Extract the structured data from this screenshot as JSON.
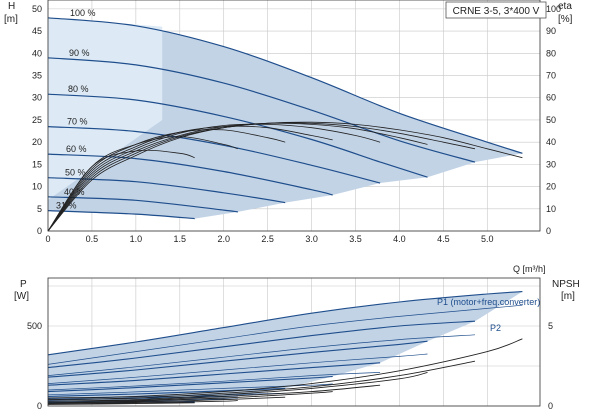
{
  "chart_data": [
    {
      "type": "line",
      "title": "CRNE 3-5, 3*400 V",
      "left_axis": {
        "label": "H",
        "unit": "[m]",
        "ticks": [
          0,
          5,
          10,
          15,
          20,
          25,
          30,
          35,
          40,
          45,
          50
        ],
        "range": [
          0,
          52
        ]
      },
      "right_axis": {
        "label": "eta",
        "unit": "[%]",
        "ticks": [
          0,
          10,
          20,
          30,
          40,
          50,
          60,
          70,
          80,
          90,
          100
        ],
        "range": [
          0,
          104
        ]
      },
      "x_axis": {
        "label": "Q [m³/h]",
        "ticks": [
          "0",
          "0.5",
          "1.0",
          "1.5",
          "2.0",
          "2.5",
          "3.0",
          "3.5",
          "4.0",
          "4.5",
          "5.0"
        ],
        "range": [
          0,
          5.6
        ]
      },
      "grid": true,
      "speed_labels": [
        "100 %",
        "90 %",
        "80 %",
        "70 %",
        "60 %",
        "50 %",
        "40 %",
        "31 %"
      ],
      "series": [
        {
          "name": "100 %",
          "Q": [
            0,
            1,
            2,
            3,
            4,
            5,
            5.4
          ],
          "H": [
            48,
            46.2,
            41.5,
            34.5,
            26.5,
            20,
            17.5
          ]
        },
        {
          "name": "90 %",
          "Q": [
            0,
            1,
            2,
            3,
            4,
            4.86
          ],
          "H": [
            39,
            37.4,
            33.3,
            27.2,
            20.3,
            15.5
          ]
        },
        {
          "name": "80 %",
          "Q": [
            0,
            1,
            2,
            3,
            3.8,
            4.32
          ],
          "H": [
            30.8,
            29.5,
            25.8,
            20.6,
            15.4,
            12.1
          ]
        },
        {
          "name": "70 %",
          "Q": [
            0,
            1,
            2,
            3,
            3.78
          ],
          "H": [
            23.5,
            22.4,
            19.3,
            14.8,
            10.8
          ]
        },
        {
          "name": "60 %",
          "Q": [
            0,
            1,
            2,
            3,
            3.24
          ],
          "H": [
            17.3,
            16.3,
            13.4,
            9.3,
            8.1
          ]
        },
        {
          "name": "50 %",
          "Q": [
            0,
            1,
            2,
            2.7
          ],
          "H": [
            12,
            11.1,
            8.6,
            6.4
          ]
        },
        {
          "name": "40 %",
          "Q": [
            0,
            1,
            2,
            2.16
          ],
          "H": [
            7.7,
            6.9,
            4.7,
            4.3
          ]
        },
        {
          "name": "31 %",
          "Q": [
            0,
            1,
            1.67
          ],
          "H": [
            4.6,
            3.8,
            2.8
          ]
        }
      ],
      "eta_curves": [
        {
          "Q": [
            0,
            0.5,
            1,
            1.5,
            2,
            2.5,
            3,
            3.5,
            4,
            4.5,
            5,
            5.4
          ],
          "eta": [
            0,
            23,
            34,
            42,
            46.5,
            48.5,
            49,
            48,
            45.5,
            42,
            37,
            33
          ]
        },
        {
          "Q": [
            0,
            0.5,
            1,
            1.5,
            2,
            2.5,
            3,
            3.5,
            4,
            4.5,
            4.86
          ],
          "eta": [
            0,
            24,
            35,
            42.5,
            46.5,
            48.5,
            48.5,
            47,
            44,
            40,
            37
          ]
        },
        {
          "Q": [
            0,
            0.5,
            1,
            1.5,
            2,
            2.5,
            3,
            3.5,
            4,
            4.32
          ],
          "eta": [
            0,
            25,
            36,
            43,
            47,
            48.5,
            48,
            46,
            42,
            39
          ]
        },
        {
          "Q": [
            0,
            0.5,
            1,
            1.5,
            2,
            2.5,
            3,
            3.5,
            3.78
          ],
          "eta": [
            0,
            26,
            37,
            44,
            47.5,
            48,
            46.5,
            43,
            40
          ]
        },
        {
          "Q": [
            0,
            0.5,
            1,
            1.5,
            2,
            2.5,
            3,
            3.24
          ],
          "eta": [
            0,
            27,
            38,
            44.5,
            47,
            46.5,
            43,
            41
          ]
        },
        {
          "Q": [
            0,
            0.5,
            1,
            1.5,
            2,
            2.5,
            2.7
          ],
          "eta": [
            0,
            28,
            39,
            44.5,
            45.5,
            42,
            40
          ]
        },
        {
          "Q": [
            0,
            0.5,
            1,
            1.5,
            2,
            2.16
          ],
          "eta": [
            0,
            29,
            39,
            42.5,
            39,
            37
          ]
        },
        {
          "Q": [
            0,
            0.5,
            1,
            1.5,
            1.67
          ],
          "eta": [
            0,
            29,
            36,
            35,
            33
          ]
        }
      ],
      "colors": {
        "curve": "#1f4e8c",
        "region_light": "#ddeaf6",
        "region_dark": "#c2d3e6",
        "eta": "#222222",
        "grid": "#c8c8c8"
      }
    },
    {
      "type": "line",
      "left_axis": {
        "label": "P",
        "unit": "[W]",
        "ticks": [
          0,
          500
        ],
        "range": [
          0,
          800
        ]
      },
      "right_axis": {
        "label": "NPSH",
        "unit": "[m]",
        "ticks": [
          0,
          5
        ],
        "range": [
          0,
          8
        ]
      },
      "series_labels": {
        "p1": "P1 (motor+freq.converter)",
        "p2": "P2"
      },
      "p1_curves": [
        {
          "Q": [
            0,
            1,
            2,
            3,
            4,
            5,
            5.4
          ],
          "P": [
            320,
            400,
            490,
            580,
            650,
            700,
            715
          ]
        },
        {
          "Q": [
            0,
            1,
            2,
            3,
            4,
            4.86
          ],
          "P": [
            240,
            300,
            370,
            440,
            500,
            530
          ]
        },
        {
          "Q": [
            0,
            1,
            2,
            3,
            4,
            4.32
          ],
          "P": [
            180,
            225,
            280,
            335,
            385,
            405
          ]
        },
        {
          "Q": [
            0,
            1,
            2,
            3,
            3.78
          ],
          "P": [
            130,
            160,
            200,
            240,
            270
          ]
        },
        {
          "Q": [
            0,
            1,
            2,
            3,
            3.24
          ],
          "P": [
            90,
            115,
            145,
            175,
            185
          ]
        },
        {
          "Q": [
            0,
            1,
            2,
            2.7
          ],
          "P": [
            60,
            75,
            95,
            110
          ]
        },
        {
          "Q": [
            0,
            1,
            2,
            2.16
          ],
          "P": [
            38,
            48,
            60,
            63
          ]
        },
        {
          "Q": [
            0,
            1,
            1.67
          ],
          "P": [
            22,
            28,
            32
          ]
        }
      ],
      "p2_curves": [
        {
          "Q": [
            0,
            1,
            2,
            3,
            4,
            5,
            5.4
          ],
          "P": [
            260,
            340,
            420,
            500,
            560,
            610,
            630
          ]
        },
        {
          "Q": [
            0,
            1,
            2,
            3,
            4,
            4.86
          ],
          "P": [
            190,
            245,
            305,
            365,
            415,
            445
          ]
        },
        {
          "Q": [
            0,
            1,
            2,
            3,
            4,
            4.32
          ],
          "P": [
            140,
            180,
            225,
            270,
            310,
            325
          ]
        },
        {
          "Q": [
            0,
            1,
            2,
            3,
            3.78
          ],
          "P": [
            100,
            125,
            155,
            190,
            210
          ]
        },
        {
          "Q": [
            0,
            1,
            2,
            3,
            3.24
          ],
          "P": [
            70,
            88,
            110,
            130,
            138
          ]
        },
        {
          "Q": [
            0,
            1,
            2,
            2.7
          ],
          "P": [
            45,
            57,
            70,
            80
          ]
        },
        {
          "Q": [
            0,
            1,
            2,
            2.16
          ],
          "P": [
            28,
            35,
            44,
            46
          ]
        },
        {
          "Q": [
            0,
            1,
            1.67
          ],
          "P": [
            16,
            20,
            23
          ]
        }
      ],
      "npsh_curves": [
        {
          "Q": [
            0,
            1,
            2,
            3,
            4,
            5,
            5.4
          ],
          "NPSH": [
            0.5,
            0.6,
            0.9,
            1.4,
            2.2,
            3.4,
            4.2
          ]
        },
        {
          "Q": [
            0,
            1,
            2,
            3,
            4,
            4.86
          ],
          "NPSH": [
            0.4,
            0.5,
            0.8,
            1.2,
            1.9,
            2.8
          ]
        },
        {
          "Q": [
            0,
            1,
            2,
            3,
            4,
            4.32
          ],
          "NPSH": [
            0.3,
            0.4,
            0.7,
            1.1,
            1.7,
            2.1
          ]
        },
        {
          "Q": [
            0,
            1,
            2,
            3,
            3.78
          ],
          "NPSH": [
            0.3,
            0.35,
            0.6,
            0.9,
            1.3
          ]
        },
        {
          "Q": [
            0,
            1,
            2,
            3,
            3.24
          ],
          "NPSH": [
            0.2,
            0.3,
            0.5,
            0.8,
            0.9
          ]
        },
        {
          "Q": [
            0,
            1,
            2,
            2.7
          ],
          "NPSH": [
            0.2,
            0.25,
            0.4,
            0.55
          ]
        },
        {
          "Q": [
            0,
            1,
            2,
            2.16
          ],
          "NPSH": [
            0.15,
            0.2,
            0.3,
            0.35
          ]
        },
        {
          "Q": [
            0,
            1,
            1.67
          ],
          "NPSH": [
            0.1,
            0.15,
            0.2
          ]
        }
      ]
    }
  ]
}
